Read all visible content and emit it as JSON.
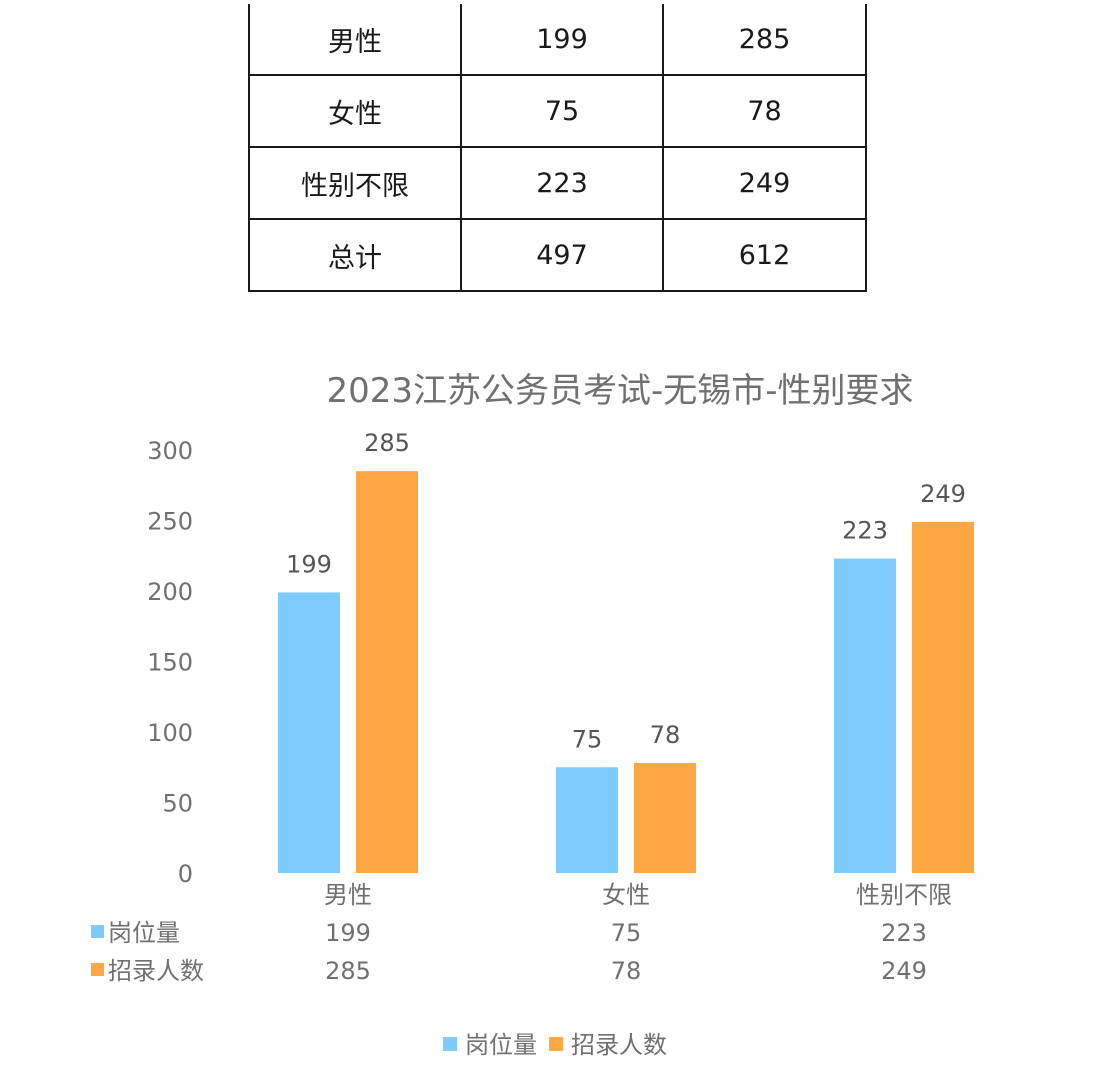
{
  "table": {
    "rows": [
      [
        "男性",
        "199",
        "285"
      ],
      [
        "女性",
        "75",
        "78"
      ],
      [
        "性别不限",
        "223",
        "249"
      ],
      [
        "总计",
        "497",
        "612"
      ]
    ]
  },
  "chart_data": {
    "type": "bar",
    "title": "2023江苏公务员考试-无锡市-性别要求",
    "categories": [
      "男性",
      "女性",
      "性别不限"
    ],
    "series": [
      {
        "name": "岗位量",
        "values": [
          199,
          75,
          223
        ],
        "color": "#7ecbff"
      },
      {
        "name": "招录人数",
        "values": [
          285,
          78,
          249
        ],
        "color": "#ffa743"
      }
    ],
    "ylim": [
      0,
      300
    ],
    "yticks": [
      0,
      50,
      100,
      150,
      200,
      250,
      300
    ],
    "grid": false,
    "legend": "bottom",
    "data_table": true
  }
}
